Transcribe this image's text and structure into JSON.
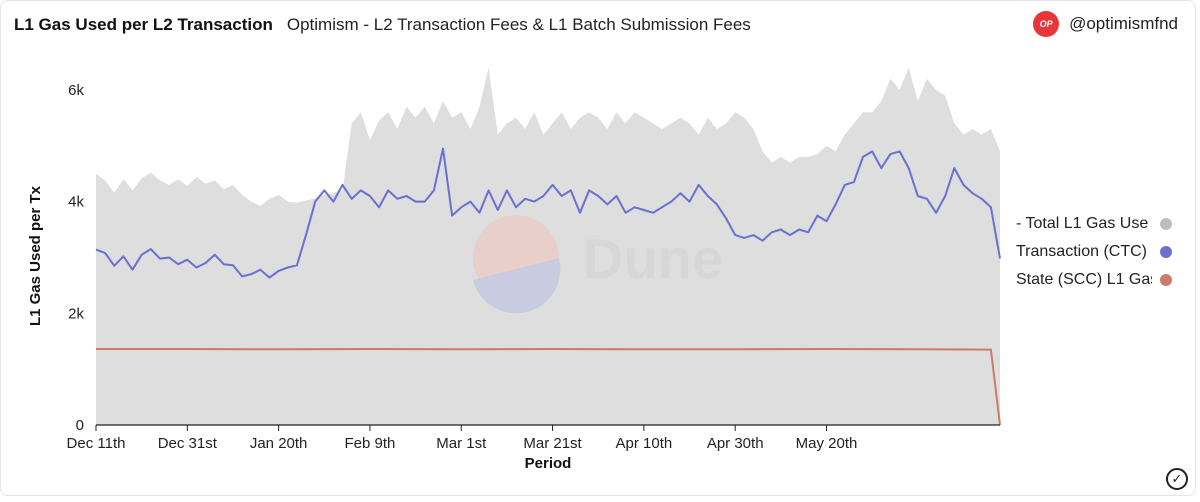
{
  "header": {
    "title": "L1 Gas Used per L2 Transaction",
    "subtitle": "Optimism - L2 Transaction Fees & L1 Batch Submission Fees",
    "brand_badge": "OP",
    "brand_handle": "@optimismfnd"
  },
  "watermark": {
    "text": "Dune"
  },
  "legend": [
    {
      "label": "- Total L1 Gas Use",
      "color": "#bdbdbd"
    },
    {
      "label": "Transaction (CTC)",
      "color": "#6a6fd1"
    },
    {
      "label": "State (SCC) L1 Gas",
      "color": "#cc7a6b"
    }
  ],
  "chart_data": {
    "type": "line",
    "xlabel": "Period",
    "ylabel": "L1 Gas Used per Tx",
    "ylim": [
      0,
      6500
    ],
    "y_ticks": [
      "0",
      "2k",
      "4k",
      "6k"
    ],
    "y_tick_values": [
      0,
      2000,
      4000,
      6000
    ],
    "x_ticks": [
      "Dec 11th",
      "Dec 31st",
      "Jan 20th",
      "Feb 9th",
      "Mar 1st",
      "Mar 21st",
      "Apr 10th",
      "Apr 30th",
      "May 20th"
    ],
    "x_start": "Dec 11th",
    "grid": false,
    "legend_position": "right",
    "series": [
      {
        "name": "- Total L1 Gas Use",
        "type": "area",
        "color": "#dedede",
        "x": [
          0,
          2,
          4,
          6,
          8,
          10,
          12,
          14,
          16,
          18,
          20,
          22,
          24,
          26,
          28,
          30,
          32,
          34,
          36,
          38,
          40,
          42,
          44,
          46,
          48,
          50,
          52,
          54,
          56,
          58,
          60,
          62,
          64,
          66,
          68,
          70,
          72,
          74,
          76,
          78,
          80,
          82,
          84,
          86,
          88,
          90,
          92,
          94,
          96,
          98,
          100,
          102,
          104,
          106,
          108,
          110,
          112,
          114,
          116,
          118,
          120,
          122,
          124,
          126,
          128,
          130,
          132,
          134,
          136,
          138,
          140,
          142,
          144,
          146,
          148,
          150,
          152,
          154,
          156,
          158,
          160,
          162,
          164,
          166,
          168,
          170,
          172,
          174,
          176,
          178,
          180,
          182,
          184,
          186,
          188,
          190,
          192,
          194,
          196,
          198
        ],
        "values": [
          4500,
          4380,
          4160,
          4400,
          4200,
          4420,
          4520,
          4380,
          4300,
          4400,
          4280,
          4440,
          4320,
          4380,
          4220,
          4300,
          4120,
          4000,
          3920,
          4050,
          4120,
          4000,
          3980,
          4020,
          4060,
          4120,
          4150,
          4200,
          5400,
          5600,
          5100,
          5450,
          5600,
          5300,
          5700,
          5500,
          5700,
          5400,
          5800,
          5500,
          5600,
          5300,
          5700,
          6400,
          5200,
          5400,
          5500,
          5300,
          5600,
          5200,
          5400,
          5600,
          5300,
          5500,
          5600,
          5500,
          5300,
          5600,
          5400,
          5600,
          5500,
          5400,
          5300,
          5400,
          5500,
          5400,
          5200,
          5500,
          5300,
          5400,
          5600,
          5500,
          5300,
          4900,
          4700,
          4800,
          4700,
          4800,
          4800,
          4850,
          5000,
          4900,
          5200,
          5400,
          5600,
          5600,
          5800,
          6200,
          6000,
          6400,
          5800,
          6200,
          6000,
          5900,
          5400,
          5200,
          5300,
          5200,
          5300,
          4900
        ]
      },
      {
        "name": "Transaction (CTC)",
        "type": "line",
        "color": "#6a6fd1",
        "x": [
          0,
          2,
          4,
          6,
          8,
          10,
          12,
          14,
          16,
          18,
          20,
          22,
          24,
          26,
          28,
          30,
          32,
          34,
          36,
          38,
          40,
          42,
          44,
          46,
          48,
          50,
          52,
          54,
          56,
          58,
          60,
          62,
          64,
          66,
          68,
          70,
          72,
          74,
          76,
          78,
          80,
          82,
          84,
          86,
          88,
          90,
          92,
          94,
          96,
          98,
          100,
          102,
          104,
          106,
          108,
          110,
          112,
          114,
          116,
          118,
          120,
          122,
          124,
          126,
          128,
          130,
          132,
          134,
          136,
          138,
          140,
          142,
          144,
          146,
          148,
          150,
          152,
          154,
          156,
          158,
          160,
          162,
          164,
          166,
          168,
          170,
          172,
          174,
          176,
          178,
          180,
          182,
          184,
          186,
          188,
          190,
          192,
          194,
          196,
          198
        ],
        "values": [
          3140,
          3080,
          2850,
          3020,
          2780,
          3050,
          3150,
          2980,
          3000,
          2880,
          2960,
          2820,
          2900,
          3050,
          2880,
          2860,
          2660,
          2700,
          2780,
          2640,
          2760,
          2820,
          2860,
          3400,
          4000,
          4200,
          4000,
          4300,
          4050,
          4200,
          4100,
          3900,
          4200,
          4050,
          4100,
          4000,
          4000,
          4200,
          4950,
          3750,
          3900,
          4000,
          3800,
          4200,
          3850,
          4200,
          3900,
          4050,
          4000,
          4100,
          4300,
          4100,
          4200,
          3800,
          4200,
          4100,
          3950,
          4100,
          3800,
          3900,
          3850,
          3800,
          3900,
          4000,
          4150,
          4000,
          4300,
          4100,
          3950,
          3700,
          3400,
          3350,
          3400,
          3300,
          3450,
          3500,
          3400,
          3500,
          3450,
          3750,
          3650,
          3950,
          4300,
          4350,
          4800,
          4900,
          4600,
          4850,
          4900,
          4600,
          4100,
          4050,
          3800,
          4100,
          4600,
          4300,
          4150,
          4050,
          3900,
          2980
        ]
      },
      {
        "name": "State (SCC) L1 Gas",
        "type": "line",
        "color": "#cc7a6b",
        "x": [
          0,
          20,
          40,
          60,
          80,
          100,
          120,
          140,
          160,
          180,
          196,
          198
        ],
        "values": [
          1360,
          1360,
          1355,
          1360,
          1358,
          1360,
          1355,
          1358,
          1360,
          1358,
          1350,
          0
        ]
      }
    ]
  }
}
